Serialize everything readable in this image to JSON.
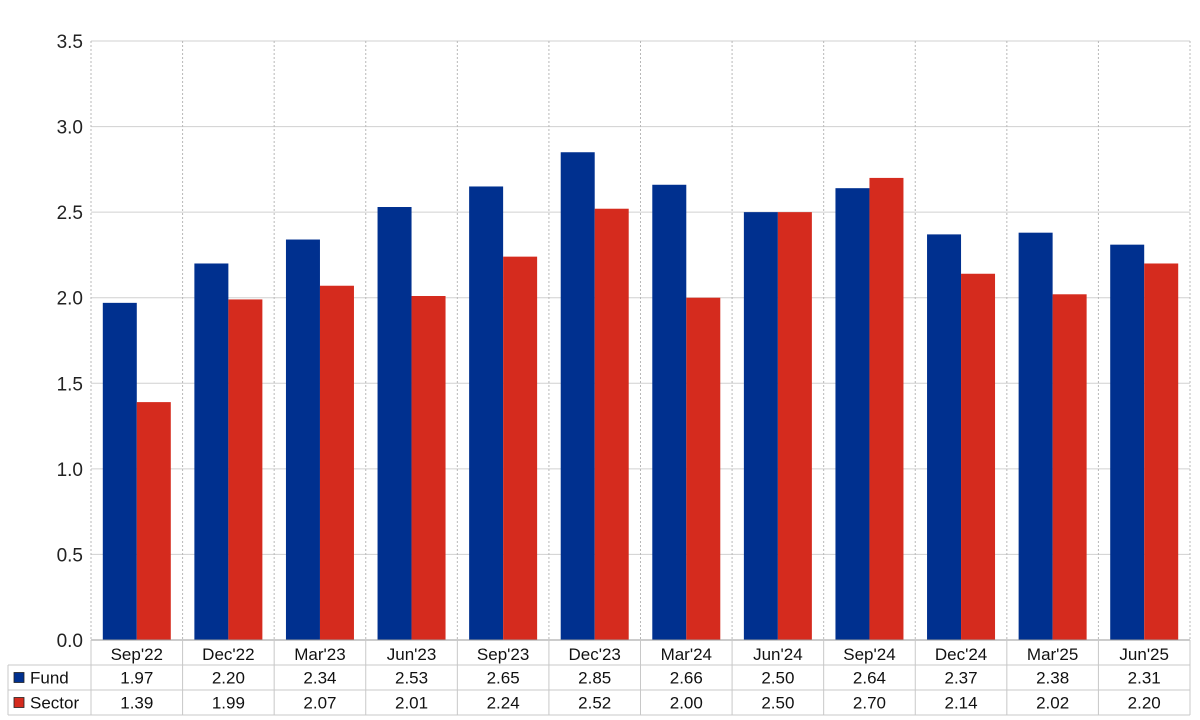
{
  "chart_data": {
    "type": "bar",
    "categories": [
      "Sep'22",
      "Dec'22",
      "Mar'23",
      "Jun'23",
      "Sep'23",
      "Dec'23",
      "Mar'24",
      "Jun'24",
      "Sep'24",
      "Dec'24",
      "Mar'25",
      "Jun'25"
    ],
    "series": [
      {
        "name": "Fund",
        "color": "#00308F",
        "values": [
          1.97,
          2.2,
          2.34,
          2.53,
          2.65,
          2.85,
          2.66,
          2.5,
          2.64,
          2.37,
          2.38,
          2.31
        ],
        "labels": [
          "1.97",
          "2.20",
          "2.34",
          "2.53",
          "2.65",
          "2.85",
          "2.66",
          "2.50",
          "2.64",
          "2.37",
          "2.38",
          "2.31"
        ]
      },
      {
        "name": "Sector",
        "color": "#D52B1E",
        "values": [
          1.39,
          1.99,
          2.07,
          2.01,
          2.24,
          2.52,
          2.0,
          2.5,
          2.7,
          2.14,
          2.02,
          2.2
        ],
        "labels": [
          "1.39",
          "1.99",
          "2.07",
          "2.01",
          "2.24",
          "2.52",
          "2.00",
          "2.50",
          "2.70",
          "2.14",
          "2.02",
          "2.20"
        ]
      }
    ],
    "ylim": [
      0,
      3.5
    ],
    "yticks": [
      "0.0",
      "0.5",
      "1.0",
      "1.5",
      "2.0",
      "2.5",
      "3.0",
      "3.5"
    ],
    "title": "",
    "xlabel": "",
    "ylabel": "",
    "grid": true,
    "legend": "data-table-bottom-left"
  }
}
